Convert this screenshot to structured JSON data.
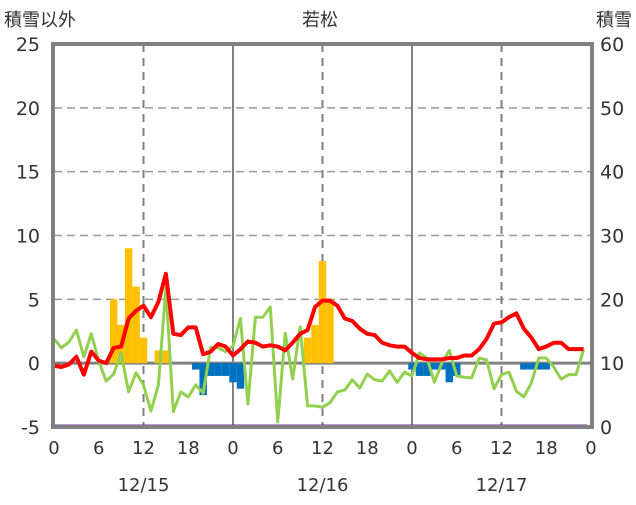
{
  "chart_data": {
    "type": "bar+line",
    "title": "若松",
    "ylabel_left": "積雪以外",
    "ylabel_right": "積雪",
    "ylim_left": [
      -5,
      25
    ],
    "ylim_right": [
      0,
      60
    ],
    "yticks_left": [
      "25",
      "20",
      "15",
      "10",
      "5",
      "0",
      "-5"
    ],
    "yticks_right": [
      "60",
      "50",
      "40",
      "30",
      "20",
      "10",
      "0"
    ],
    "xlim_hours": [
      0,
      72
    ],
    "xtick_labels": [
      "0",
      "6",
      "12",
      "18",
      "0",
      "6",
      "12",
      "18",
      "0",
      "6",
      "12",
      "18",
      "0"
    ],
    "date_labels": [
      "12/15",
      "12/16",
      "12/17"
    ],
    "grid": "dashed horizontal at 5-unit steps; solid vertical at day boundaries; dashed vertical at noon",
    "colors": {
      "red": "#ff0000",
      "green": "#92d050",
      "yellow": "#ffc000",
      "blue": "#0070c0",
      "purple": "#7030a0",
      "axis": "#808080"
    },
    "series": [
      {
        "name": "red-line",
        "axis": "left",
        "values": [
          -0.2,
          -0.3,
          -0.1,
          0.5,
          -0.9,
          0.9,
          0.2,
          0.0,
          1.2,
          1.3,
          3.5,
          4.1,
          4.5,
          3.6,
          4.8,
          7.0,
          2.3,
          2.2,
          2.8,
          2.8,
          0.7,
          0.9,
          1.5,
          1.3,
          0.6,
          1.1,
          1.7,
          1.6,
          1.3,
          1.4,
          1.3,
          1.0,
          1.6,
          2.3,
          2.6,
          4.4,
          4.9,
          4.9,
          4.5,
          3.5,
          3.3,
          2.7,
          2.3,
          2.2,
          1.6,
          1.4,
          1.3,
          1.3,
          0.8,
          0.4,
          0.3,
          0.3,
          0.3,
          0.4,
          0.4,
          0.6,
          0.6,
          1.1,
          1.9,
          3.1,
          3.2,
          3.6,
          3.9,
          2.7,
          2.0,
          1.1,
          1.3,
          1.6,
          1.6,
          1.1,
          1.1,
          1.1
        ]
      },
      {
        "name": "green-line",
        "axis": "right",
        "values": [
          13.8,
          12.4,
          13.3,
          15.2,
          11.0,
          14.6,
          10.3,
          7.2,
          8.3,
          11.6,
          5.5,
          8.5,
          6.6,
          2.5,
          6.6,
          21.8,
          2.4,
          5.5,
          4.7,
          6.6,
          5.3,
          12.5,
          12.4,
          11.8,
          12.7,
          17.0,
          3.6,
          17.2,
          17.2,
          18.8,
          0.8,
          14.7,
          7.5,
          15.7,
          3.3,
          3.3,
          3.1,
          3.8,
          5.5,
          5.8,
          7.4,
          6.1,
          8.3,
          7.4,
          7.2,
          8.8,
          7.0,
          8.6,
          8.0,
          11.6,
          10.8,
          7.0,
          10.0,
          12.0,
          8.0,
          7.8,
          7.7,
          10.8,
          10.5,
          6.0,
          8.2,
          8.6,
          5.6,
          4.7,
          6.9,
          10.8,
          10.8,
          9.4,
          7.5,
          8.2,
          8.2,
          12.1
        ]
      },
      {
        "name": "bars",
        "axis": "left",
        "values": [
          0,
          0,
          0,
          0,
          0,
          0,
          0,
          0,
          5,
          3,
          9,
          6,
          2,
          0,
          1,
          1,
          0,
          0,
          0,
          -0.5,
          -2.5,
          -1,
          -1,
          -1,
          -1.5,
          -2,
          0,
          0,
          0,
          0,
          0,
          0,
          0,
          0,
          2,
          3,
          8,
          5,
          0,
          0,
          0,
          0,
          0,
          0,
          0,
          0,
          0,
          0,
          -0.5,
          -1,
          -1,
          -0.5,
          -0.5,
          -1.5,
          -1,
          0,
          0,
          0,
          0,
          0,
          0,
          0,
          0,
          -0.5,
          -0.5,
          -0.5,
          -0.5,
          0,
          0,
          0,
          0,
          0
        ]
      },
      {
        "name": "purple-line",
        "axis": "left",
        "values": [
          -5,
          -5
        ]
      }
    ]
  }
}
